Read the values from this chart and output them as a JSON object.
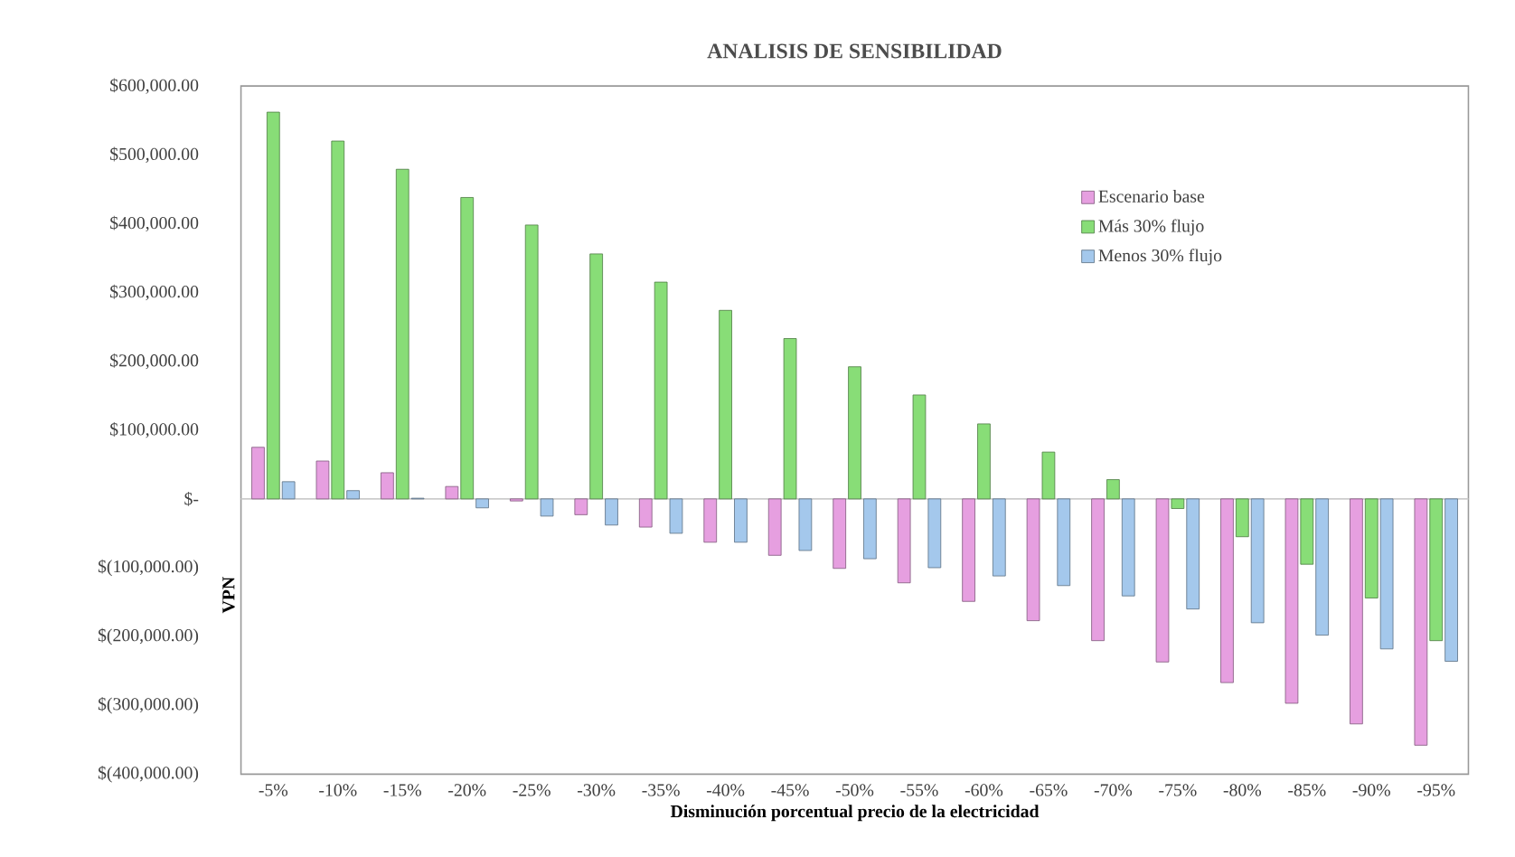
{
  "chart_data": {
    "type": "bar",
    "title": "ANALISIS DE SENSIBILIDAD",
    "xlabel": "Disminución porcentual precio de la electricidad",
    "ylabel": "VPN",
    "categories": [
      "-5%",
      "-10%",
      "-15%",
      "-20%",
      "-25%",
      "-30%",
      "-35%",
      "-40%",
      "-45%",
      "-50%",
      "-55%",
      "-60%",
      "-65%",
      "-70%",
      "-75%",
      "-80%",
      "-85%",
      "-90%",
      "-95%"
    ],
    "series": [
      {
        "name": "Escenario base",
        "color": "#e69fe0",
        "values": [
          75000,
          55000,
          38000,
          18000,
          -3000,
          -23000,
          -41000,
          -63000,
          -82000,
          -101000,
          -122000,
          -149000,
          -177000,
          -206000,
          -237000,
          -267000,
          -297000,
          -327000,
          -358000
        ]
      },
      {
        "name": "Más 30% flujo",
        "color": "#88dd77",
        "values": [
          562000,
          520000,
          479000,
          438000,
          398000,
          356000,
          315000,
          274000,
          233000,
          192000,
          151000,
          109000,
          68000,
          28000,
          -14000,
          -55000,
          -95000,
          -144000,
          -206000
        ]
      },
      {
        "name": "Menos 30% flujo",
        "color": "#a4c8ec",
        "values": [
          25000,
          12000,
          1000,
          -13000,
          -25000,
          -38000,
          -50000,
          -63000,
          -75000,
          -87000,
          -100000,
          -112000,
          -126000,
          -141000,
          -160000,
          -180000,
          -198000,
          -218000,
          -236000
        ]
      }
    ],
    "ylim": [
      -400000,
      600000
    ],
    "yticks": [
      {
        "value": -400000,
        "label": "$(400,000.00)"
      },
      {
        "value": -300000,
        "label": "$(300,000.00)"
      },
      {
        "value": -200000,
        "label": "$(200,000.00)"
      },
      {
        "value": -100000,
        "label": "$(100,000.00)"
      },
      {
        "value": 0,
        "label": "$-"
      },
      {
        "value": 100000,
        "label": "$100,000.00"
      },
      {
        "value": 200000,
        "label": "$200,000.00"
      },
      {
        "value": 300000,
        "label": "$300,000.00"
      },
      {
        "value": 400000,
        "label": "$400,000.00"
      },
      {
        "value": 500000,
        "label": "$500,000.00"
      },
      {
        "value": 600000,
        "label": "$600,000.00"
      }
    ],
    "legend": "top right"
  }
}
